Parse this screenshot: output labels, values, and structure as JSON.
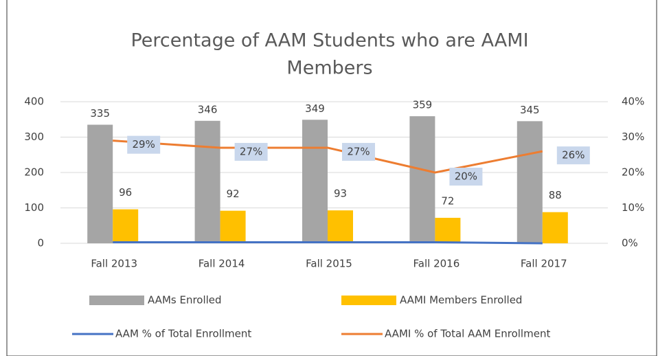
{
  "chart_data": {
    "type": "combo",
    "title": [
      "Percentage of AAM Students who are AAMI",
      "Members"
    ],
    "categories": [
      "Fall 2013",
      "Fall 2014",
      "Fall 2015",
      "Fall 2016",
      "Fall 2017"
    ],
    "series": [
      {
        "name": "AAMs Enrolled",
        "type": "bar",
        "color": "#a5a5a5",
        "values": [
          335,
          346,
          349,
          359,
          345
        ]
      },
      {
        "name": "AAMI Members Enrolled",
        "type": "bar",
        "color": "#ffc000",
        "values": [
          96,
          92,
          93,
          72,
          88
        ]
      },
      {
        "name": "AAM % of Total Enrollment",
        "type": "line",
        "axis": "y2",
        "color": "#4472c4",
        "values": [
          0.3,
          0.3,
          0.3,
          0.3,
          0
        ]
      },
      {
        "name": "AAMI % of Total AAM Enrollment",
        "type": "line",
        "axis": "y2",
        "color": "#ed7d31",
        "values": [
          29,
          27,
          27,
          20,
          26
        ],
        "value_labels": [
          "29%",
          "27%",
          "27%",
          "20%",
          "26%"
        ]
      }
    ],
    "ylim": [
      0,
      400
    ],
    "yticks": [
      0,
      100,
      200,
      300,
      400
    ],
    "y2lim": [
      0,
      40
    ],
    "y2ticks": [
      {
        "value": 0,
        "label": "0%"
      },
      {
        "value": 10,
        "label": "10%"
      },
      {
        "value": 20,
        "label": "20%"
      },
      {
        "value": 30,
        "label": "30%"
      },
      {
        "value": 40,
        "label": "40%"
      }
    ],
    "grid": true
  }
}
